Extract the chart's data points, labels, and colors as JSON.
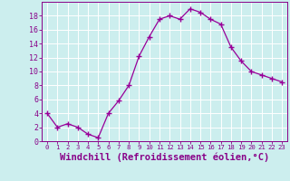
{
  "x": [
    0,
    1,
    2,
    3,
    4,
    5,
    6,
    7,
    8,
    9,
    10,
    11,
    12,
    13,
    14,
    15,
    16,
    17,
    18,
    19,
    20,
    21,
    22,
    23
  ],
  "y": [
    4,
    2,
    2.5,
    2,
    1,
    0.5,
    4,
    5.8,
    8,
    12.2,
    15,
    17.5,
    18,
    17.5,
    19,
    18.5,
    17.5,
    16.8,
    13.5,
    11.5,
    10,
    9.5,
    9,
    8.5
  ],
  "line_color": "#990099",
  "marker": "+",
  "bg_color": "#cceeee",
  "grid_color": "#ffffff",
  "xlabel": "Windchill (Refroidissement éolien,°C)",
  "xlabel_fontsize": 7.5,
  "tick_color": "#880088",
  "xlim": [
    -0.5,
    23.5
  ],
  "ylim": [
    0,
    20
  ],
  "xticks": [
    0,
    1,
    2,
    3,
    4,
    5,
    6,
    7,
    8,
    9,
    10,
    11,
    12,
    13,
    14,
    15,
    16,
    17,
    18,
    19,
    20,
    21,
    22,
    23
  ],
  "yticks": [
    0,
    2,
    4,
    6,
    8,
    10,
    12,
    14,
    16,
    18
  ]
}
